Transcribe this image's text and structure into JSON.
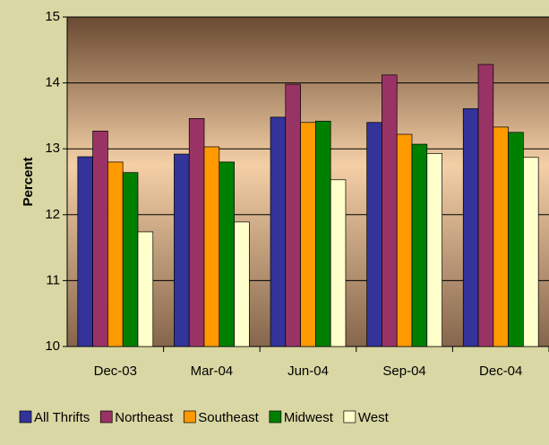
{
  "chart_data": {
    "type": "bar",
    "y_label": "Percent",
    "categories": [
      "Dec-03",
      "Mar-04",
      "Jun-04",
      "Sep-04",
      "Dec-04"
    ],
    "series": [
      {
        "name": "All Thrifts",
        "color": "#333399",
        "values": [
          12.88,
          12.92,
          13.48,
          13.4,
          13.61
        ]
      },
      {
        "name": "Northeast",
        "color": "#993366",
        "values": [
          13.27,
          13.46,
          13.98,
          14.12,
          14.28
        ]
      },
      {
        "name": "Southeast",
        "color": "#ff9900",
        "values": [
          12.8,
          13.03,
          13.4,
          13.22,
          13.33
        ]
      },
      {
        "name": "Midwest",
        "color": "#008000",
        "values": [
          12.64,
          12.8,
          13.42,
          13.07,
          13.25
        ]
      },
      {
        "name": "West",
        "color": "#ffffcc",
        "values": [
          11.74,
          11.89,
          12.53,
          12.93,
          12.87
        ]
      }
    ],
    "ylim": [
      10,
      15
    ],
    "yticks": [
      10,
      11,
      12,
      13,
      14,
      15
    ],
    "grid": true,
    "legend": "bottom"
  }
}
